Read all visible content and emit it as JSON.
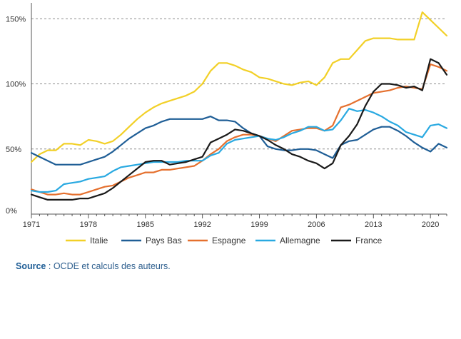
{
  "chart_data": {
    "type": "line",
    "title": "",
    "xlabel": "",
    "ylabel": "",
    "xlim": [
      1971,
      2022
    ],
    "ylim": [
      0,
      160
    ],
    "x_ticks": [
      "1971",
      "1978",
      "1985",
      "1992",
      "1999",
      "2006",
      "2013",
      "2020"
    ],
    "y_ticks": [
      "0%",
      "50%",
      "100%",
      "150%"
    ],
    "grid": "dashed horizontal at 50%, 100%, 150%",
    "legend_position": "bottom",
    "x": [
      1971,
      1972,
      1973,
      1974,
      1975,
      1976,
      1977,
      1978,
      1979,
      1980,
      1981,
      1982,
      1983,
      1984,
      1985,
      1986,
      1987,
      1988,
      1989,
      1990,
      1991,
      1992,
      1993,
      1994,
      1995,
      1996,
      1997,
      1998,
      1999,
      2000,
      2001,
      2002,
      2003,
      2004,
      2005,
      2006,
      2007,
      2008,
      2009,
      2010,
      2011,
      2012,
      2013,
      2014,
      2015,
      2016,
      2017,
      2018,
      2019,
      2020,
      2021,
      2022
    ],
    "series": [
      {
        "name": "Italie",
        "color": "#f2d027",
        "values": [
          40,
          46,
          49,
          49,
          54,
          54,
          53,
          57,
          56,
          54,
          56,
          61,
          67,
          73,
          78,
          82,
          85,
          87,
          89,
          91,
          94,
          100,
          110,
          116,
          116,
          114,
          111,
          109,
          105,
          104,
          102,
          100,
          99,
          101,
          102,
          99,
          105,
          116,
          119,
          119,
          126,
          133,
          135,
          135,
          135,
          134,
          134,
          134,
          155,
          149,
          143,
          137
        ]
      },
      {
        "name": "Pays Bas",
        "color": "#1f5e96",
        "values": [
          47,
          44,
          41,
          38,
          38,
          38,
          38,
          40,
          42,
          44,
          48,
          53,
          58,
          62,
          66,
          68,
          71,
          73,
          73,
          73,
          73,
          73,
          75,
          72,
          72,
          71,
          66,
          62,
          60,
          52,
          50,
          49,
          49,
          50,
          50,
          49,
          46,
          43,
          53,
          56,
          57,
          61,
          65,
          67,
          67,
          64,
          60,
          55,
          51,
          48,
          54,
          51
        ]
      },
      {
        "name": "Espagne",
        "color": "#e5702e",
        "values": [
          19,
          17,
          15,
          15,
          16,
          15,
          15,
          17,
          19,
          21,
          22,
          25,
          28,
          30,
          32,
          32,
          34,
          34,
          35,
          36,
          37,
          41,
          46,
          50,
          56,
          59,
          61,
          61,
          60,
          58,
          56,
          60,
          64,
          65,
          66,
          66,
          64,
          68,
          82,
          84,
          87,
          90,
          93,
          94,
          95,
          97,
          98,
          97,
          96,
          115,
          113,
          110
        ]
      },
      {
        "name": "Allemagne",
        "color": "#29a9e1",
        "values": [
          18,
          17,
          17,
          18,
          23,
          24,
          25,
          27,
          28,
          29,
          33,
          36,
          37,
          38,
          39,
          40,
          40,
          40,
          40,
          41,
          41,
          41,
          45,
          47,
          54,
          57,
          58,
          59,
          60,
          58,
          57,
          59,
          62,
          64,
          67,
          67,
          64,
          65,
          72,
          81,
          79,
          80,
          78,
          75,
          71,
          68,
          63,
          61,
          59,
          68,
          69,
          66
        ]
      },
      {
        "name": "France",
        "color": "#1a1a1a",
        "values": [
          15,
          13,
          11,
          11,
          11,
          11,
          12,
          12,
          14,
          16,
          20,
          25,
          30,
          35,
          40,
          41,
          41,
          38,
          39,
          40,
          42,
          44,
          55,
          58,
          61,
          65,
          64,
          62,
          60,
          57,
          53,
          50,
          46,
          44,
          41,
          39,
          35,
          39,
          53,
          60,
          69,
          83,
          94,
          100,
          100,
          99,
          97,
          98,
          95,
          119,
          116,
          107
        ]
      }
    ]
  },
  "source": {
    "label": "Source",
    "separator": " : ",
    "text": "OCDE et calculs des auteurs."
  }
}
